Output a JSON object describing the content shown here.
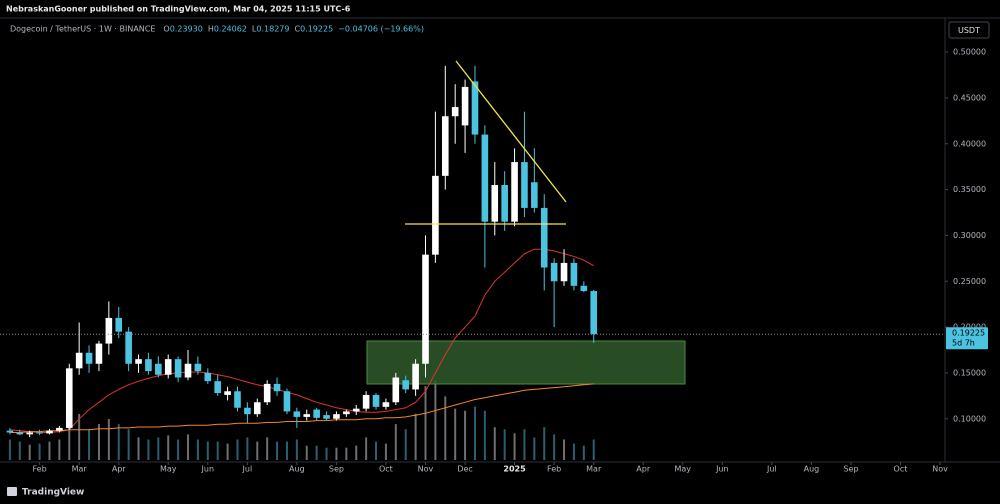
{
  "chart_data": {
    "type": "candlestick",
    "header": "NebraskanGooner published on TradingView.com, Mar 04, 2025 11:15 UTC-6",
    "legend": {
      "symbol": "Dogecoin / TetherUS · 1W · BINANCE",
      "o_label": "O",
      "open": "0.23930",
      "h_label": "H",
      "high": "0.24062",
      "l_label": "L",
      "low": "0.18279",
      "c_label": "C",
      "close": "0.19225",
      "change": "−0.04706 (−19.66%)"
    },
    "countdown": "5d 7h",
    "currency": "USDT",
    "watermark": "TradingView",
    "up_color": "#ffffff",
    "down_color": "#4cc3e0",
    "xlim": [
      -1,
      94.5
    ],
    "xticks": [
      {
        "value": 3,
        "label": "Feb"
      },
      {
        "value": 7,
        "label": "Mar"
      },
      {
        "value": 11,
        "label": "Apr"
      },
      {
        "value": 16,
        "label": "May"
      },
      {
        "value": 20,
        "label": "Jun"
      },
      {
        "value": 24,
        "label": "Jul"
      },
      {
        "value": 29,
        "label": "Aug"
      },
      {
        "value": 33,
        "label": "Sep"
      },
      {
        "value": 38,
        "label": "Oct"
      },
      {
        "value": 42,
        "label": "Nov"
      },
      {
        "value": 46,
        "label": "Dec"
      },
      {
        "value": 51,
        "label": "2025"
      },
      {
        "value": 55,
        "label": "Feb"
      },
      {
        "value": 59,
        "label": "Mar"
      },
      {
        "value": 64,
        "label": "Apr"
      },
      {
        "value": 68,
        "label": "May"
      },
      {
        "value": 72,
        "label": "Jun"
      },
      {
        "value": 77,
        "label": "Jul"
      },
      {
        "value": 81,
        "label": "Aug"
      },
      {
        "value": 85,
        "label": "Sep"
      },
      {
        "value": 90,
        "label": "Oct"
      },
      {
        "value": 94,
        "label": "Nov"
      }
    ],
    "ylim": [
      0.055,
      0.535
    ],
    "yticks": [
      {
        "value": 0.1,
        "label": "0.10000"
      },
      {
        "value": 0.15,
        "label": "0.15000"
      },
      {
        "value": 0.2,
        "label": "0.20000"
      },
      {
        "value": 0.25,
        "label": "0.25000"
      },
      {
        "value": 0.3,
        "label": "0.30000"
      },
      {
        "value": 0.35,
        "label": "0.35000"
      },
      {
        "value": 0.4,
        "label": "0.40000"
      },
      {
        "value": 0.45,
        "label": "0.45000"
      },
      {
        "value": 0.5,
        "label": "0.50000"
      }
    ],
    "open": [
      0.087,
      0.085,
      0.083,
      0.085,
      0.084,
      0.087,
      0.09,
      0.155,
      0.172,
      0.16,
      0.182,
      0.21,
      0.195,
      0.16,
      0.165,
      0.16,
      0.148,
      0.165,
      0.145,
      0.16,
      0.15,
      0.141,
      0.126,
      0.13,
      0.112,
      0.105,
      0.118,
      0.138,
      0.13,
      0.108,
      0.102,
      0.11,
      0.104,
      0.1,
      0.105,
      0.108,
      0.111,
      0.126,
      0.113,
      0.118,
      0.142,
      0.132,
      0.16,
      0.279,
      0.365,
      0.43,
      0.42,
      0.468,
      0.41,
      0.315,
      0.355,
      0.315,
      0.38,
      0.358,
      0.33,
      0.27,
      0.25,
      0.27,
      0.245,
      0.2393
    ],
    "high": [
      0.09,
      0.088,
      0.087,
      0.088,
      0.089,
      0.092,
      0.16,
      0.205,
      0.18,
      0.185,
      0.228,
      0.222,
      0.2,
      0.17,
      0.172,
      0.168,
      0.17,
      0.168,
      0.175,
      0.168,
      0.155,
      0.148,
      0.135,
      0.135,
      0.118,
      0.122,
      0.142,
      0.145,
      0.133,
      0.112,
      0.11,
      0.112,
      0.108,
      0.108,
      0.11,
      0.115,
      0.13,
      0.128,
      0.122,
      0.15,
      0.147,
      0.165,
      0.3,
      0.435,
      0.485,
      0.465,
      0.47,
      0.485,
      0.42,
      0.38,
      0.37,
      0.395,
      0.435,
      0.395,
      0.345,
      0.275,
      0.285,
      0.275,
      0.25,
      0.24062
    ],
    "low": [
      0.083,
      0.082,
      0.08,
      0.082,
      0.083,
      0.085,
      0.088,
      0.148,
      0.15,
      0.152,
      0.17,
      0.188,
      0.152,
      0.15,
      0.148,
      0.145,
      0.144,
      0.14,
      0.142,
      0.148,
      0.138,
      0.125,
      0.12,
      0.108,
      0.095,
      0.102,
      0.115,
      0.125,
      0.105,
      0.09,
      0.098,
      0.098,
      0.098,
      0.098,
      0.102,
      0.104,
      0.108,
      0.11,
      0.11,
      0.115,
      0.128,
      0.125,
      0.145,
      0.27,
      0.35,
      0.4,
      0.39,
      0.4,
      0.265,
      0.3,
      0.305,
      0.31,
      0.32,
      0.325,
      0.24,
      0.2,
      0.245,
      0.24,
      0.238,
      0.18279
    ],
    "close": [
      0.085,
      0.083,
      0.085,
      0.084,
      0.087,
      0.09,
      0.155,
      0.172,
      0.16,
      0.182,
      0.21,
      0.195,
      0.16,
      0.165,
      0.152,
      0.148,
      0.165,
      0.145,
      0.16,
      0.152,
      0.141,
      0.128,
      0.13,
      0.112,
      0.105,
      0.118,
      0.138,
      0.13,
      0.108,
      0.102,
      0.105,
      0.101,
      0.1,
      0.105,
      0.108,
      0.111,
      0.126,
      0.113,
      0.118,
      0.145,
      0.132,
      0.16,
      0.279,
      0.365,
      0.43,
      0.44,
      0.462,
      0.41,
      0.315,
      0.355,
      0.315,
      0.38,
      0.33,
      0.33,
      0.265,
      0.25,
      0.27,
      0.245,
      0.2393,
      0.19225
    ],
    "volume": [
      20,
      18,
      15,
      16,
      18,
      20,
      50,
      45,
      30,
      35,
      40,
      35,
      30,
      22,
      20,
      22,
      24,
      20,
      25,
      20,
      18,
      18,
      16,
      20,
      22,
      18,
      22,
      18,
      18,
      20,
      14,
      14,
      12,
      12,
      12,
      14,
      22,
      18,
      16,
      35,
      30,
      45,
      72,
      78,
      62,
      50,
      48,
      52,
      48,
      32,
      30,
      26,
      30,
      22,
      32,
      25,
      20,
      16,
      14,
      20
    ],
    "series": [
      {
        "color": "#e0342f",
        "values": [
          0.088,
          0.087,
          0.086,
          0.085,
          0.085,
          0.086,
          0.088,
          0.1,
          0.11,
          0.118,
          0.126,
          0.132,
          0.137,
          0.141,
          0.144,
          0.147,
          0.149,
          0.15,
          0.151,
          0.151,
          0.15,
          0.148,
          0.146,
          0.143,
          0.14,
          0.137,
          0.135,
          0.132,
          0.129,
          0.126,
          0.122,
          0.118,
          0.115,
          0.112,
          0.11,
          0.108,
          0.107,
          0.107,
          0.108,
          0.11,
          0.112,
          0.118,
          0.13,
          0.15,
          0.17,
          0.188,
          0.2,
          0.212,
          0.235,
          0.25,
          0.26,
          0.27,
          0.28,
          0.285,
          0.285,
          0.283,
          0.28,
          0.277,
          0.273,
          0.267
        ]
      },
      {
        "color": "#f0882a",
        "values": [
          0.085,
          0.085,
          0.086,
          0.086,
          0.087,
          0.087,
          0.088,
          0.088,
          0.088,
          0.089,
          0.089,
          0.09,
          0.09,
          0.091,
          0.091,
          0.091,
          0.092,
          0.092,
          0.093,
          0.093,
          0.093,
          0.094,
          0.094,
          0.095,
          0.095,
          0.095,
          0.096,
          0.096,
          0.097,
          0.097,
          0.097,
          0.098,
          0.098,
          0.099,
          0.099,
          0.099,
          0.1,
          0.1,
          0.101,
          0.101,
          0.102,
          0.104,
          0.106,
          0.109,
          0.112,
          0.115,
          0.118,
          0.121,
          0.123,
          0.125,
          0.127,
          0.129,
          0.131,
          0.132,
          0.133,
          0.134,
          0.135,
          0.136,
          0.137,
          0.138
        ]
      }
    ]
  }
}
